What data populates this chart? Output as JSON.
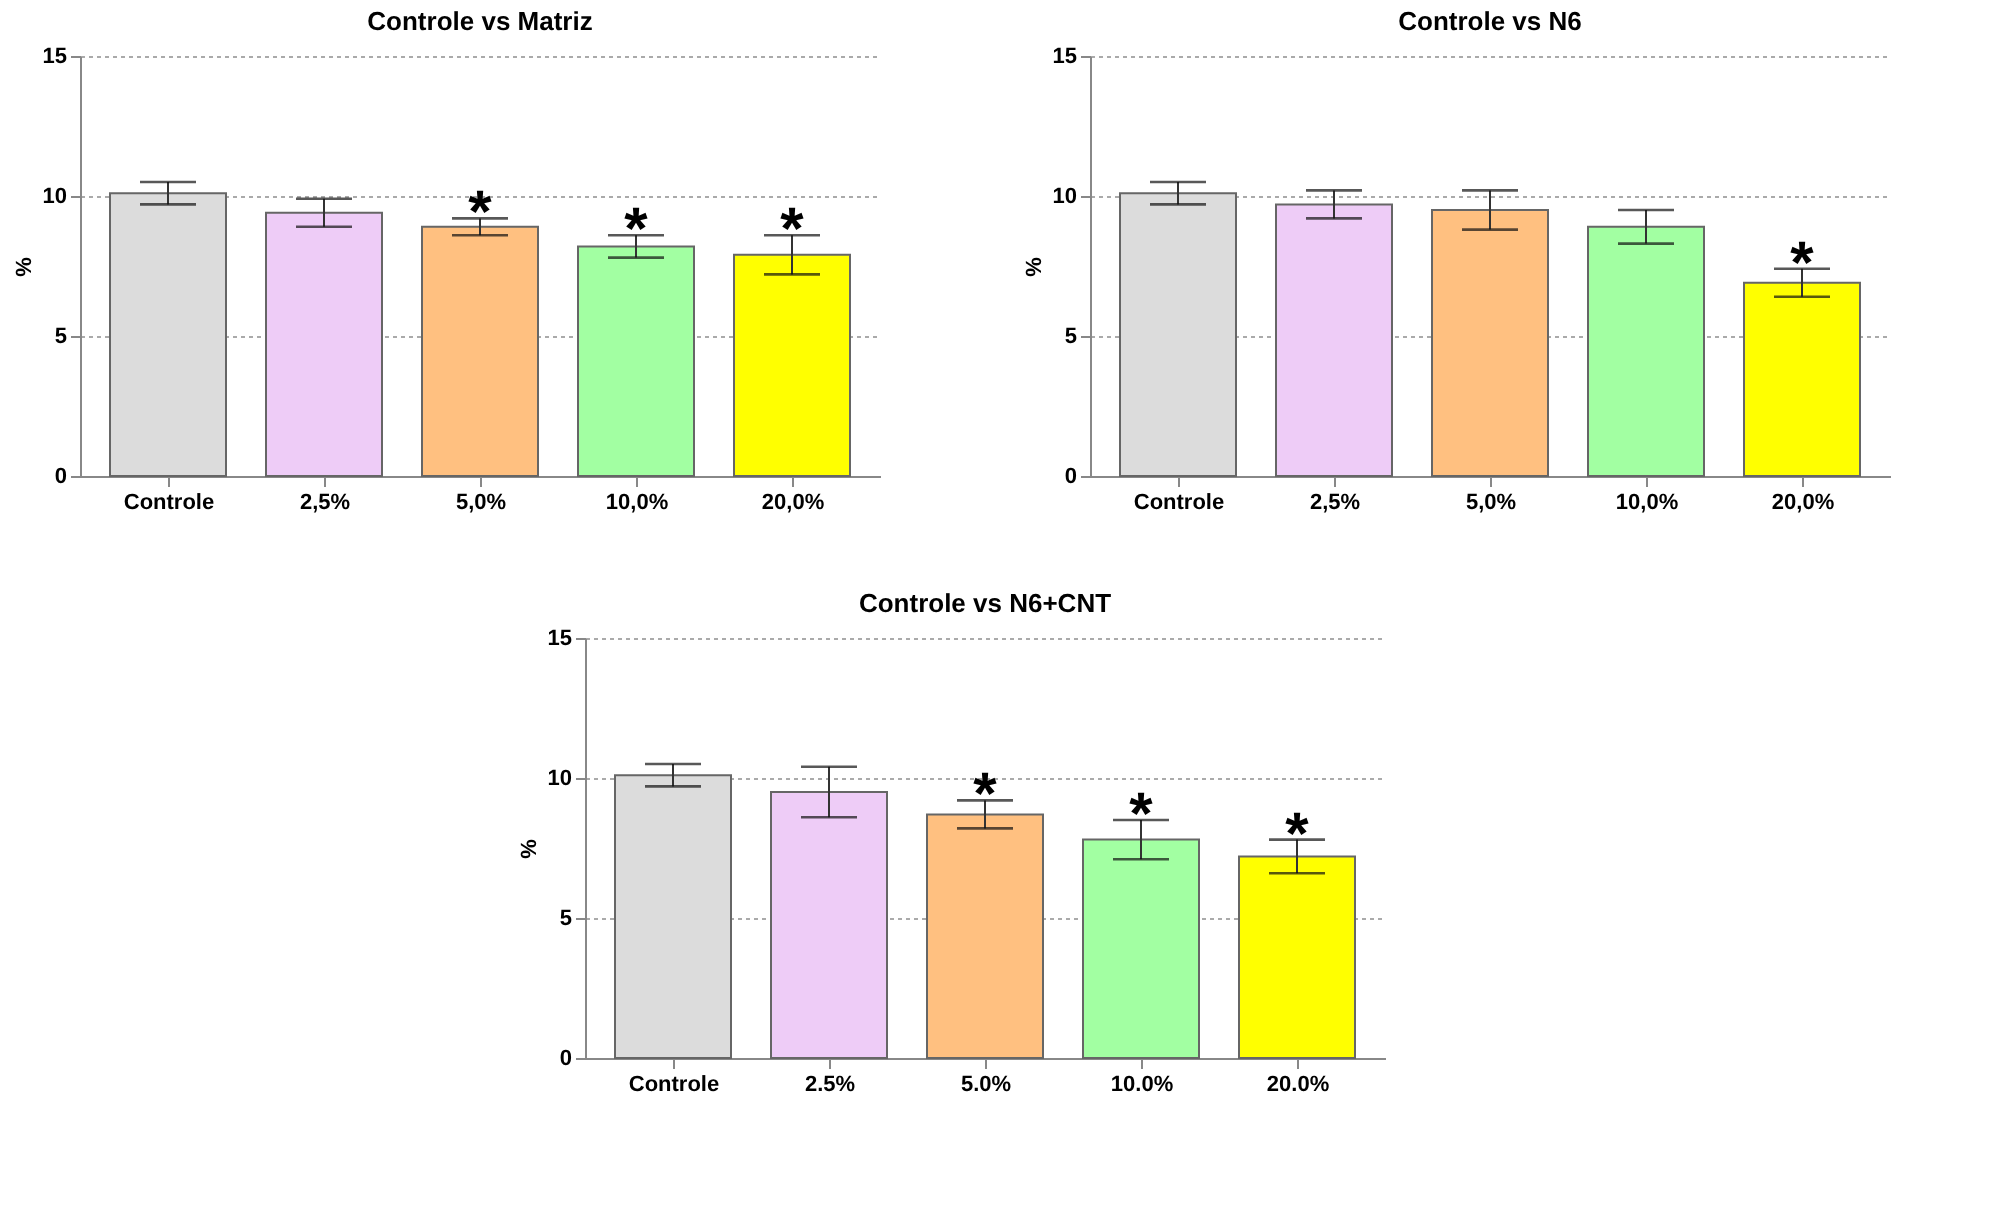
{
  "chart_data": [
    {
      "type": "bar",
      "title": "Controle vs Matriz",
      "ylabel": "%",
      "categories": [
        "Controle",
        "2,5%",
        "5,0%",
        "10,0%",
        "20,0%"
      ],
      "values": [
        10.1,
        9.4,
        8.9,
        8.2,
        7.9
      ],
      "errors": [
        0.4,
        0.5,
        0.3,
        0.4,
        0.7
      ],
      "colors": [
        "#dcdcdc",
        "#eeccf7",
        "#ffc080",
        "#a2ffa2",
        "#ffff00"
      ],
      "ylim": [
        0,
        15
      ],
      "yticks": [
        0,
        5,
        10,
        15
      ],
      "grid": "y",
      "annotations": [
        {
          "text": "*",
          "x": "5,0%"
        },
        {
          "text": "*",
          "x": "10,0%"
        },
        {
          "text": "*",
          "x": "20,0%"
        }
      ]
    },
    {
      "type": "bar",
      "title": "Controle vs N6",
      "ylabel": "%",
      "categories": [
        "Controle",
        "2,5%",
        "5,0%",
        "10,0%",
        "20,0%"
      ],
      "values": [
        10.1,
        9.7,
        9.5,
        8.9,
        6.9
      ],
      "errors": [
        0.4,
        0.5,
        0.7,
        0.6,
        0.5
      ],
      "colors": [
        "#dcdcdc",
        "#eeccf7",
        "#ffc080",
        "#a2ffa2",
        "#ffff00"
      ],
      "ylim": [
        0,
        15
      ],
      "yticks": [
        0,
        5,
        10,
        15
      ],
      "grid": "y",
      "annotations": [
        {
          "text": "*",
          "x": "20,0%"
        }
      ]
    },
    {
      "type": "bar",
      "title": "Controle vs N6+CNT",
      "ylabel": "%",
      "categories": [
        "Controle",
        "2.5%",
        "5.0%",
        "10.0%",
        "20.0%"
      ],
      "values": [
        10.1,
        9.5,
        8.7,
        7.8,
        7.2
      ],
      "errors": [
        0.4,
        0.9,
        0.5,
        0.7,
        0.6
      ],
      "colors": [
        "#dcdcdc",
        "#eeccf7",
        "#ffc080",
        "#a2ffa2",
        "#ffff00"
      ],
      "ylim": [
        0,
        15
      ],
      "yticks": [
        0,
        5,
        10,
        15
      ],
      "grid": "y",
      "annotations": [
        {
          "text": "*",
          "x": "5.0%"
        },
        {
          "text": "*",
          "x": "10.0%"
        },
        {
          "text": "*",
          "x": "20.0%"
        }
      ]
    }
  ]
}
